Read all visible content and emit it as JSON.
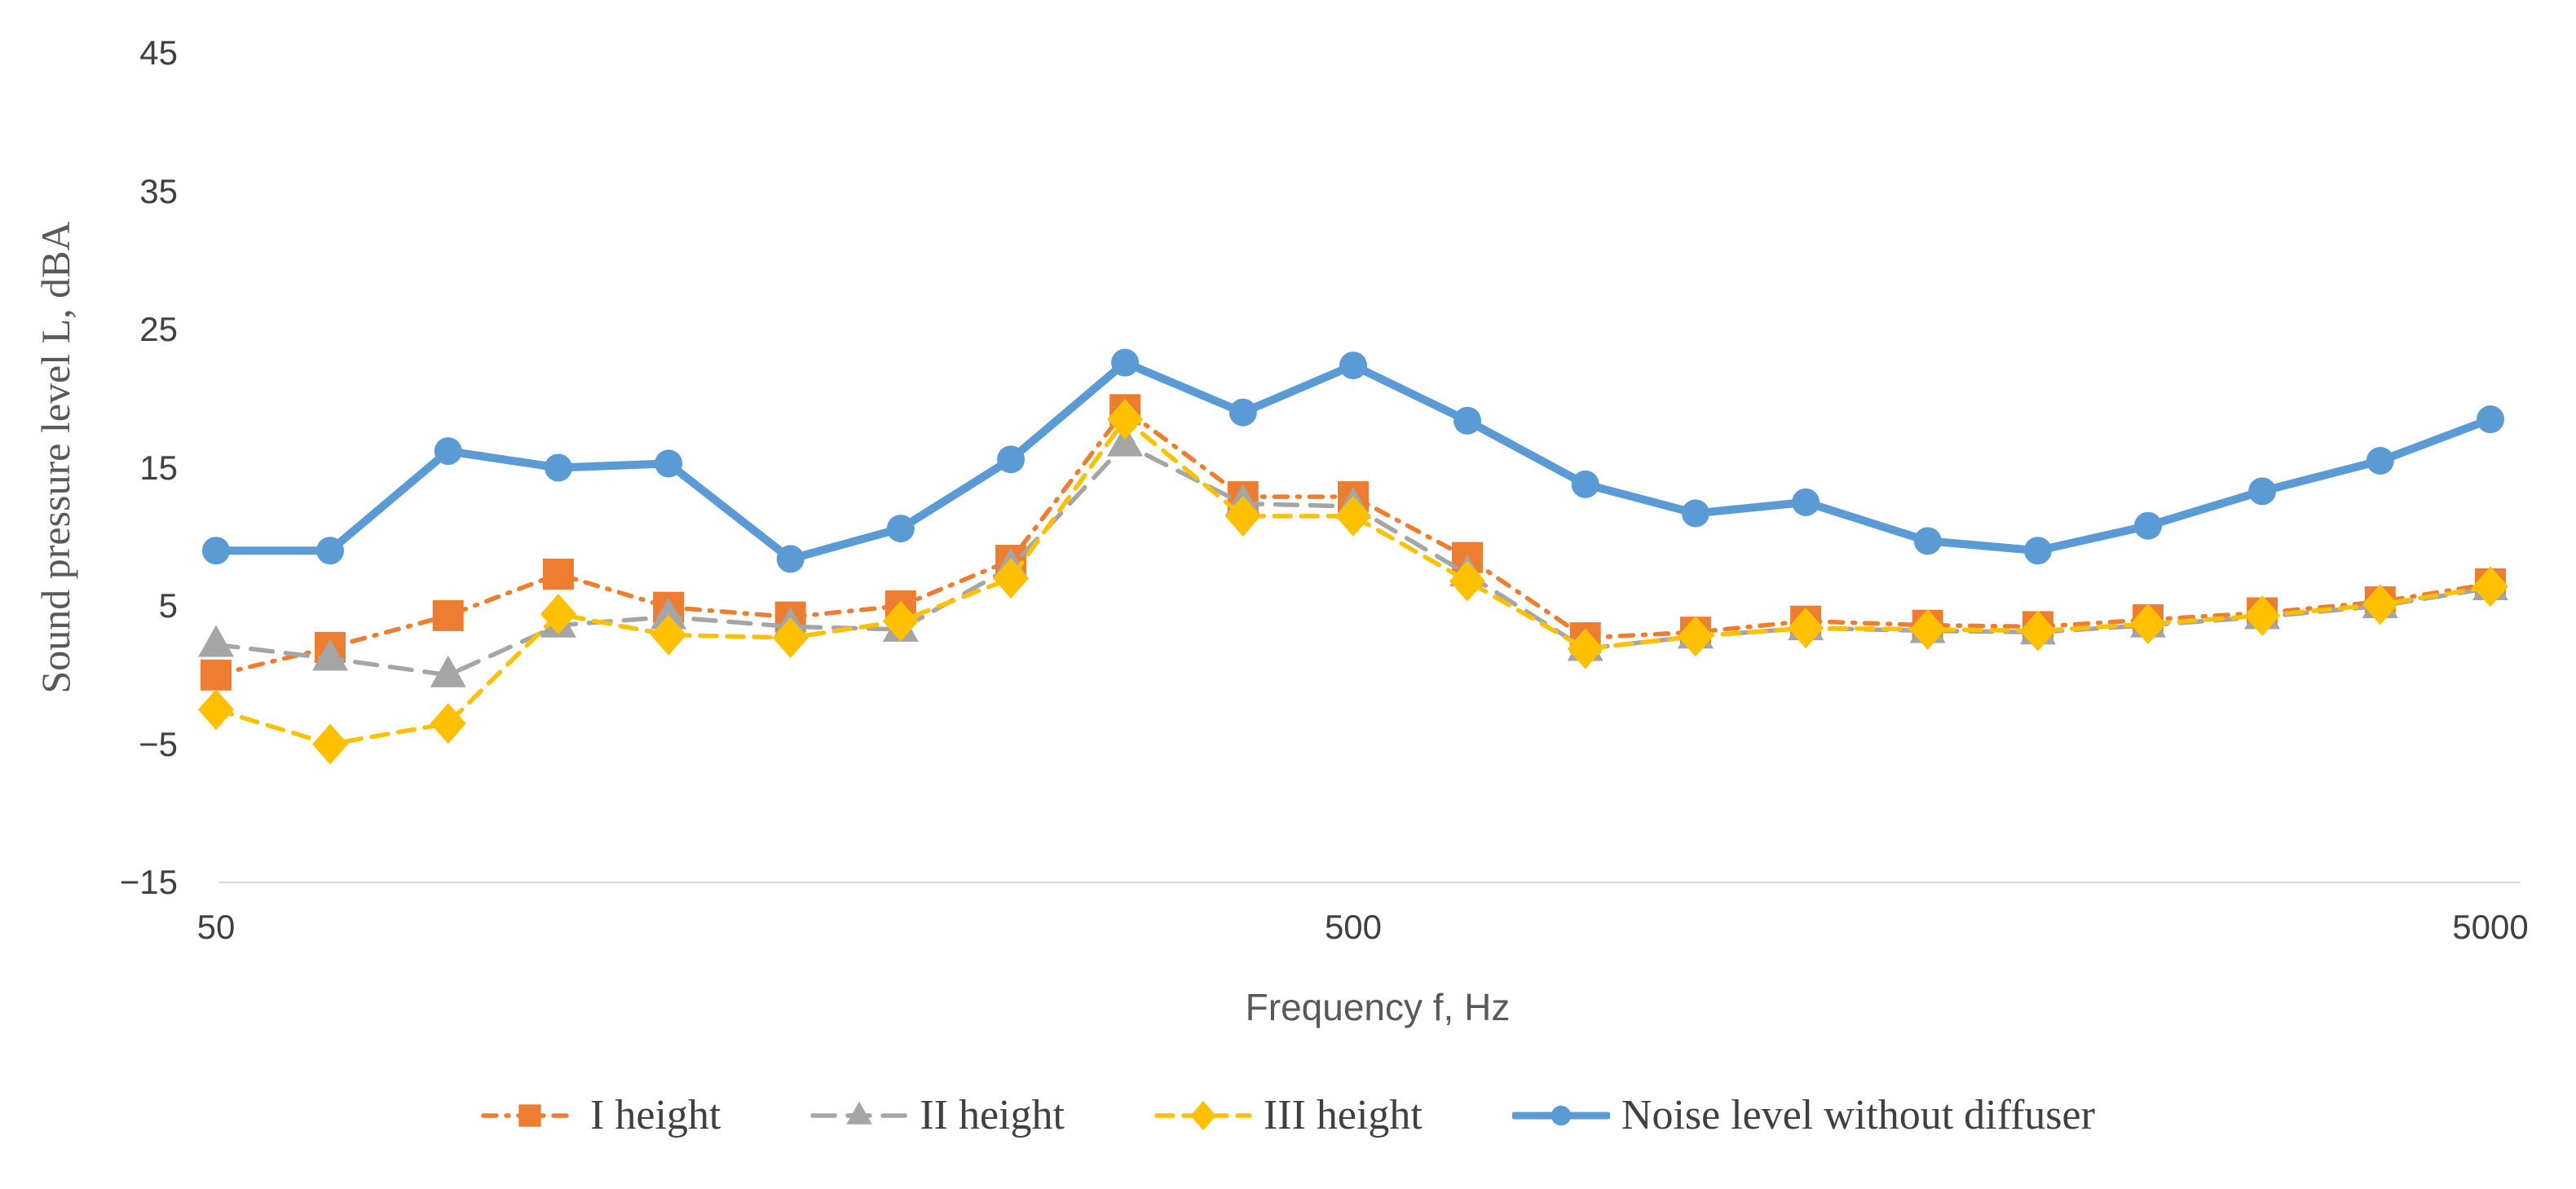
{
  "chart_data": {
    "type": "line",
    "title": "",
    "xlabel": "Frequency f, Hz",
    "ylabel": "Sound pressure level L, dBA",
    "x_scale": "log",
    "xlim": [
      50,
      5000
    ],
    "ylim": [
      -15,
      45
    ],
    "grid": "off",
    "legend_position": "bottom",
    "x": [
      50,
      63,
      80,
      100,
      125,
      160,
      200,
      250,
      315,
      400,
      500,
      630,
      800,
      1000,
      1250,
      1600,
      2000,
      2500,
      3150,
      4000,
      5000
    ],
    "x_ticks": [
      50,
      500,
      5000
    ],
    "x_tick_labels": [
      "50",
      "500",
      "5000"
    ],
    "y_ticks": [
      45,
      35,
      25,
      15,
      5,
      -5,
      -15
    ],
    "y_tick_labels": [
      "45",
      "35",
      "25",
      "15",
      "5",
      "−5",
      "−15"
    ],
    "series": [
      {
        "name": "I height",
        "color": "#ED7D31",
        "marker": "square",
        "line_style": "dash-dot",
        "values": [
          0.0,
          2.0,
          4.3,
          7.3,
          4.9,
          4.2,
          5.0,
          8.3,
          19.2,
          12.9,
          12.9,
          8.5,
          2.7,
          3.1,
          3.9,
          3.6,
          3.5,
          4.0,
          4.5,
          5.3,
          6.6
        ]
      },
      {
        "name": "II height",
        "color": "#A5A5A5",
        "marker": "triangle",
        "line_style": "long-dash",
        "values": [
          2.2,
          1.2,
          0.0,
          3.6,
          4.2,
          3.5,
          3.3,
          7.8,
          16.7,
          12.4,
          12.2,
          7.3,
          1.9,
          2.8,
          3.4,
          3.2,
          3.1,
          3.6,
          4.2,
          5.0,
          6.3
        ]
      },
      {
        "name": "III height",
        "color": "#FFC000",
        "marker": "diamond",
        "line_style": "dash",
        "values": [
          -2.5,
          -5.0,
          -3.5,
          4.4,
          2.9,
          2.7,
          3.9,
          7.0,
          18.5,
          11.5,
          11.5,
          6.8,
          1.9,
          2.8,
          3.4,
          3.3,
          3.2,
          3.7,
          4.3,
          5.1,
          6.4
        ]
      },
      {
        "name": "Noise level without diffuser",
        "color": "#5B9BD5",
        "marker": "circle",
        "line_style": "solid",
        "values": [
          9.0,
          9.0,
          16.2,
          15.0,
          15.3,
          8.4,
          10.6,
          15.6,
          22.6,
          19.0,
          22.4,
          18.4,
          13.8,
          11.7,
          12.5,
          9.7,
          9.0,
          10.8,
          13.3,
          15.5,
          18.5
        ]
      }
    ]
  },
  "colors": {
    "axis_line": "#D9D9D9",
    "tick_text": "#404040",
    "axis_title_text": "#595959",
    "legend_text": "#404040",
    "background": "#FFFFFF"
  }
}
